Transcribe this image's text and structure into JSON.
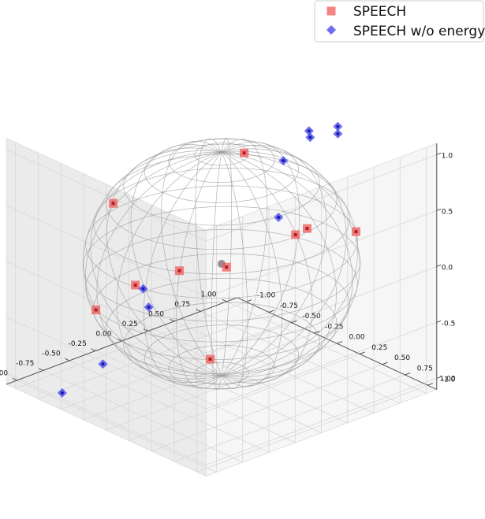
{
  "chart_data": {
    "type": "scatter3d",
    "title": "",
    "xlabel": "",
    "ylabel": "",
    "zlabel": "",
    "xlim": [
      -1.1,
      1.1
    ],
    "ylim": [
      -1.1,
      1.1
    ],
    "zlim": [
      -1.1,
      1.1
    ],
    "x_ticks": [
      "-1.00",
      "-0.75",
      "-0.50",
      "-0.25",
      "0.00",
      "0.25",
      "0.50",
      "0.75",
      "1.00"
    ],
    "y_ticks": [
      "-1.00",
      "-0.75",
      "-0.50",
      "-0.25",
      "0.00",
      "0.25",
      "0.50",
      "0.75",
      "1.00"
    ],
    "z_ticks": [
      "-1.0",
      "-0.5",
      "0.0",
      "0.5",
      "1.0"
    ],
    "grid": true,
    "legend_position": "top-right",
    "annotations": [
      "unit sphere wireframe",
      "center point at origin"
    ],
    "colors": {
      "speech": "#f05a5a",
      "speech_wo_energy": "#4a4af0",
      "sphere": "#9a9a9a"
    },
    "series": [
      {
        "name": "SPEECH",
        "marker": "square",
        "points": [
          {
            "x": 0.12,
            "y": 0.11,
            "z": 0.99
          },
          {
            "x": -0.67,
            "y": -0.42,
            "z": 0.62
          },
          {
            "x": 0.78,
            "y": 0.58,
            "z": 0.23
          },
          {
            "x": 0.67,
            "y": 0.04,
            "z": 0.04
          },
          {
            "x": 0.98,
            "y": -0.19,
            "z": -0.1
          },
          {
            "x": -0.07,
            "y": -0.87,
            "z": -0.49
          },
          {
            "x": 0.6,
            "y": -0.64,
            "z": -0.48
          },
          {
            "x": -0.93,
            "y": -0.31,
            "z": -0.2
          },
          {
            "x": 0.09,
            "y": -0.23,
            "z": -0.97
          },
          {
            "x": -0.16,
            "y": -0.28,
            "z": -0.11
          }
        ]
      },
      {
        "name": "SPEECH w/o energy",
        "marker": "diamond",
        "points": [
          {
            "x": 0.47,
            "y": 0.42,
            "z": 1.18
          },
          {
            "x": 0.71,
            "y": 0.46,
            "z": 1.15
          },
          {
            "x": 0.62,
            "y": 0.26,
            "z": 1.01
          },
          {
            "x": 0.78,
            "y": 0.38,
            "z": 1.03
          },
          {
            "x": 0.39,
            "y": 0.23,
            "z": 0.87
          },
          {
            "x": 0.37,
            "y": 0.2,
            "z": 0.36
          },
          {
            "x": -0.66,
            "y": -0.04,
            "z": -0.17
          },
          {
            "x": -0.95,
            "y": -0.21,
            "z": -0.64
          },
          {
            "x": -0.16,
            "y": -0.68,
            "z": -0.42
          },
          {
            "x": -1.2,
            "y": -0.37,
            "z": -0.87
          }
        ]
      }
    ]
  }
}
